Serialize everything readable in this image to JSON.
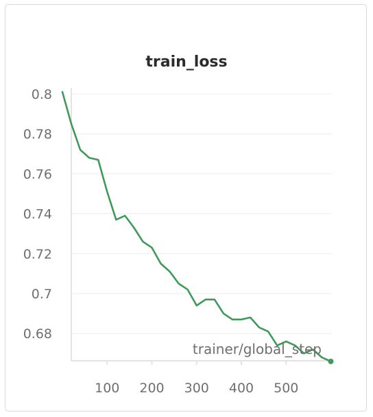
{
  "chart_data": {
    "type": "line",
    "title": "train_loss",
    "xlabel": "trainer/global_step",
    "ylabel": "",
    "xlim": [
      0,
      600
    ],
    "ylim": [
      0.667,
      0.802
    ],
    "xticks": [
      100,
      200,
      300,
      400,
      500
    ],
    "xtick_labels": [
      "100",
      "200",
      "300",
      "400",
      "500"
    ],
    "yticks": [
      0.8,
      0.78,
      0.76,
      0.74,
      0.72,
      0.7,
      0.68
    ],
    "ytick_labels": [
      "0.8",
      "0.78",
      "0.76",
      "0.74",
      "0.72",
      "0.7",
      "0.68"
    ],
    "grid": true,
    "line_color": "#3f9a5a",
    "series": [
      {
        "x": [
          0,
          20,
          40,
          60,
          80,
          100,
          120,
          140,
          160,
          180,
          200,
          220,
          240,
          260,
          280,
          300,
          320,
          340,
          360,
          380,
          400,
          420,
          440,
          460,
          480,
          500,
          520,
          540,
          560,
          580,
          600
        ],
        "y": [
          0.801,
          0.785,
          0.772,
          0.768,
          0.767,
          0.751,
          0.737,
          0.739,
          0.733,
          0.726,
          0.723,
          0.715,
          0.711,
          0.705,
          0.702,
          0.694,
          0.697,
          0.697,
          0.69,
          0.687,
          0.687,
          0.688,
          0.683,
          0.681,
          0.674,
          0.676,
          0.674,
          0.67,
          0.672,
          0.668,
          0.666
        ]
      }
    ]
  }
}
